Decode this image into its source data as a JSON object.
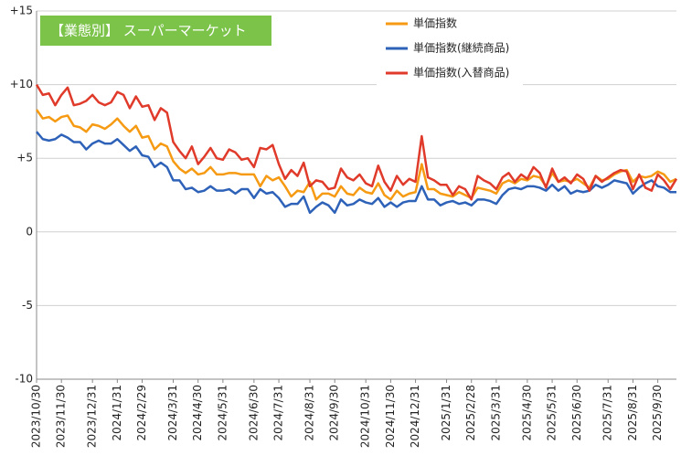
{
  "chart_data": {
    "type": "line",
    "annotation": "【業態別】 スーパーマーケット",
    "categories": [
      "2023/10/30",
      null,
      null,
      null,
      "2023/11/30",
      null,
      null,
      null,
      null,
      "2023/12/31",
      null,
      null,
      null,
      "2024/1/31",
      null,
      null,
      null,
      "2024/2/29",
      null,
      null,
      null,
      null,
      "2024/3/31",
      null,
      null,
      null,
      "2024/4/30",
      null,
      null,
      null,
      "2024/5/31",
      null,
      null,
      null,
      null,
      "2024/6/30",
      null,
      null,
      null,
      "2024/7/31",
      null,
      null,
      null,
      null,
      "2024/8/31",
      null,
      null,
      null,
      "2024/9/30",
      null,
      null,
      null,
      null,
      "2024/10/31",
      null,
      null,
      null,
      "2024/11/30",
      null,
      null,
      null,
      "2024/12/31",
      null,
      null,
      null,
      null,
      "2025/1/31",
      null,
      null,
      null,
      "2025/2/28",
      null,
      null,
      null,
      "2025/3/31",
      null,
      null,
      null,
      null,
      "2025/4/30",
      null,
      null,
      null,
      "2025/5/31",
      null,
      null,
      null,
      "2025/6/30",
      null,
      null,
      null,
      null,
      "2025/7/31",
      null,
      null,
      null,
      "2025/8/31",
      null,
      null,
      null,
      "2025/9/30",
      null,
      null,
      null
    ],
    "series": [
      {
        "name": "単価指数",
        "color": "#f59a12",
        "values": [
          8.3,
          7.7,
          7.8,
          7.5,
          7.8,
          7.9,
          7.2,
          7.1,
          6.8,
          7.3,
          7.2,
          7.0,
          7.3,
          7.7,
          7.2,
          6.8,
          7.2,
          6.4,
          6.5,
          5.6,
          6.0,
          5.8,
          4.8,
          4.3,
          4.0,
          4.3,
          3.9,
          4.0,
          4.4,
          3.9,
          3.9,
          4.0,
          4.0,
          3.9,
          3.9,
          3.9,
          3.1,
          3.8,
          3.5,
          3.7,
          3.1,
          2.4,
          2.8,
          2.7,
          3.4,
          2.2,
          2.6,
          2.6,
          2.4,
          3.1,
          2.6,
          2.5,
          3.0,
          2.7,
          2.6,
          3.3,
          2.5,
          2.2,
          2.8,
          2.4,
          2.6,
          2.7,
          4.6,
          2.9,
          2.9,
          2.6,
          2.5,
          2.4,
          2.7,
          2.5,
          2.3,
          3.0,
          2.9,
          2.8,
          2.6,
          3.3,
          3.5,
          3.3,
          3.6,
          3.5,
          3.8,
          3.7,
          3.1,
          4.0,
          3.4,
          3.5,
          3.4,
          3.6,
          3.3,
          3.0,
          3.8,
          3.5,
          3.6,
          3.9,
          4.1,
          4.2,
          3.4,
          3.8,
          3.7,
          3.8,
          4.1,
          3.9,
          3.4,
          3.6
        ]
      },
      {
        "name": "単価指数(継続商品)",
        "color": "#2e62b8",
        "values": [
          6.8,
          6.3,
          6.2,
          6.3,
          6.6,
          6.4,
          6.1,
          6.1,
          5.6,
          6.0,
          6.2,
          6.0,
          6.0,
          6.3,
          5.9,
          5.5,
          5.8,
          5.2,
          5.1,
          4.4,
          4.7,
          4.4,
          3.5,
          3.5,
          2.9,
          3.0,
          2.7,
          2.8,
          3.1,
          2.8,
          2.8,
          2.9,
          2.6,
          2.9,
          2.9,
          2.3,
          2.9,
          2.6,
          2.7,
          2.3,
          1.7,
          1.9,
          1.9,
          2.4,
          1.3,
          1.7,
          2.0,
          1.8,
          1.3,
          2.2,
          1.8,
          1.9,
          2.2,
          2.0,
          1.9,
          2.3,
          1.7,
          2.0,
          1.7,
          2.0,
          2.1,
          2.1,
          3.1,
          2.2,
          2.2,
          1.8,
          2.0,
          2.1,
          1.9,
          2.0,
          1.8,
          2.2,
          2.2,
          2.1,
          1.9,
          2.5,
          2.9,
          3.0,
          2.9,
          3.1,
          3.1,
          3.0,
          2.8,
          3.2,
          2.8,
          3.1,
          2.6,
          2.8,
          2.7,
          2.8,
          3.2,
          3.0,
          3.2,
          3.5,
          3.4,
          3.3,
          2.6,
          3.0,
          3.3,
          3.5,
          3.1,
          3.0,
          2.7,
          2.7
        ]
      },
      {
        "name": "単価指数(入替商品)",
        "color": "#e03a2a",
        "values": [
          10.0,
          9.3,
          9.4,
          8.6,
          9.3,
          9.8,
          8.6,
          8.7,
          8.9,
          9.3,
          8.8,
          8.6,
          8.8,
          9.5,
          9.3,
          8.4,
          9.2,
          8.5,
          8.6,
          7.6,
          8.4,
          8.1,
          6.1,
          5.5,
          5.0,
          5.8,
          4.6,
          5.1,
          5.7,
          5.0,
          4.9,
          5.6,
          5.4,
          4.9,
          5.0,
          4.4,
          5.7,
          5.6,
          5.9,
          4.6,
          3.6,
          4.2,
          3.8,
          4.7,
          3.1,
          3.5,
          3.4,
          2.9,
          3.0,
          4.3,
          3.7,
          3.5,
          3.9,
          3.3,
          3.1,
          4.5,
          3.4,
          2.8,
          3.8,
          3.2,
          3.6,
          3.4,
          6.5,
          3.7,
          3.5,
          3.2,
          3.2,
          2.5,
          3.1,
          2.9,
          2.2,
          3.8,
          3.5,
          3.3,
          2.9,
          3.7,
          4.0,
          3.4,
          3.9,
          3.6,
          4.4,
          4.0,
          3.0,
          4.3,
          3.4,
          3.7,
          3.3,
          3.9,
          3.6,
          2.8,
          3.8,
          3.4,
          3.7,
          4.0,
          4.2,
          4.1,
          2.9,
          3.9,
          3.0,
          2.8,
          3.9,
          3.5,
          2.9,
          3.6
        ]
      }
    ],
    "ylim": [
      -10,
      15
    ],
    "yticks": [
      {
        "value": -10,
        "label": "-10"
      },
      -5,
      0,
      {
        "value": 5,
        "label": "+5"
      },
      {
        "value": 10,
        "label": "+10"
      },
      {
        "value": 15,
        "label": "+15"
      }
    ],
    "grid": true,
    "legend": "upper right",
    "annotation_color": "#7cc34a"
  }
}
